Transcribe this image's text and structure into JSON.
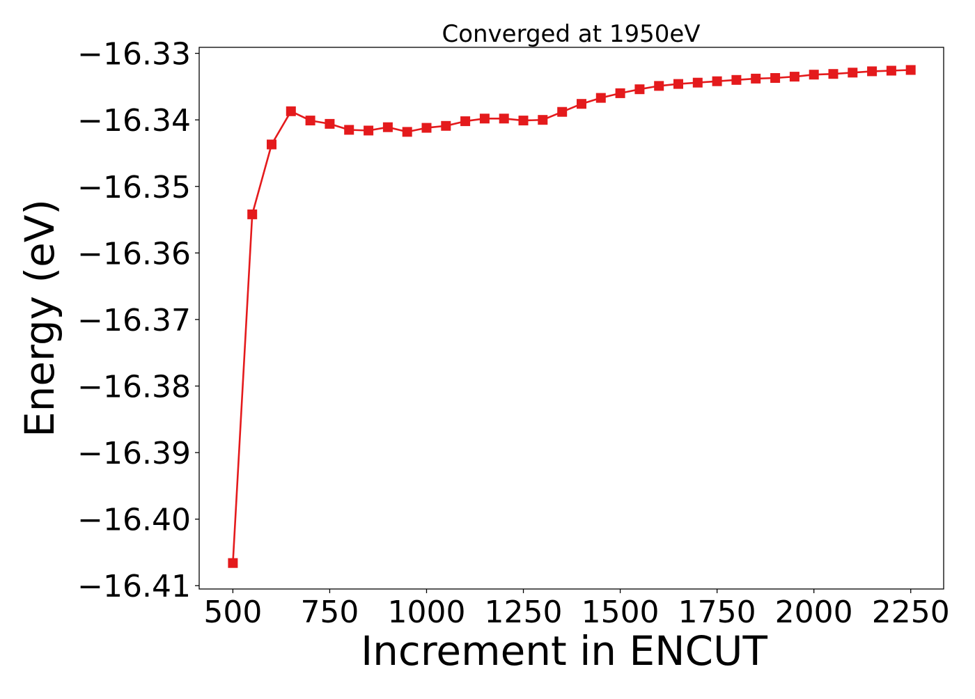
{
  "chart_data": {
    "type": "line",
    "title": "Converged at 1950eV",
    "xlabel": "Increment in ENCUT",
    "ylabel": "Energy (eV)",
    "xlim": [
      413,
      2335
    ],
    "ylim": [
      -16.4105,
      -16.3291
    ],
    "xticks": [
      500,
      750,
      1000,
      1250,
      1500,
      1750,
      2000,
      2250
    ],
    "xtick_labels": [
      "500",
      "750",
      "1000",
      "1250",
      "1500",
      "1750",
      "2000",
      "2250"
    ],
    "yticks": [
      -16.33,
      -16.34,
      -16.35,
      -16.36,
      -16.37,
      -16.38,
      -16.39,
      -16.4,
      -16.41
    ],
    "ytick_labels": [
      "−16.33",
      "−16.34",
      "−16.35",
      "−16.36",
      "−16.37",
      "−16.38",
      "−16.39",
      "−16.40",
      "−16.41"
    ],
    "grid": false,
    "marker": "square",
    "line_color": "#e41a1c",
    "series": [
      {
        "x": [
          500,
          550,
          600,
          650,
          700,
          750,
          800,
          850,
          900,
          950,
          1000,
          1050,
          1100,
          1150,
          1200,
          1250,
          1300,
          1350,
          1400,
          1450,
          1500,
          1550,
          1600,
          1650,
          1700,
          1750,
          1800,
          1850,
          1900,
          1950,
          2000,
          2050,
          2100,
          2150,
          2200,
          2250
        ],
        "values": [
          -16.4066,
          -16.3542,
          -16.3437,
          -16.3387,
          -16.3401,
          -16.3406,
          -16.3415,
          -16.3416,
          -16.3411,
          -16.3418,
          -16.3412,
          -16.3409,
          -16.3402,
          -16.3398,
          -16.3398,
          -16.3401,
          -16.34,
          -16.3388,
          -16.3376,
          -16.3367,
          -16.336,
          -16.3354,
          -16.3349,
          -16.3346,
          -16.3344,
          -16.3342,
          -16.334,
          -16.3338,
          -16.3337,
          -16.3335,
          -16.3332,
          -16.3331,
          -16.3329,
          -16.3327,
          -16.3326,
          -16.3325
        ]
      }
    ]
  }
}
